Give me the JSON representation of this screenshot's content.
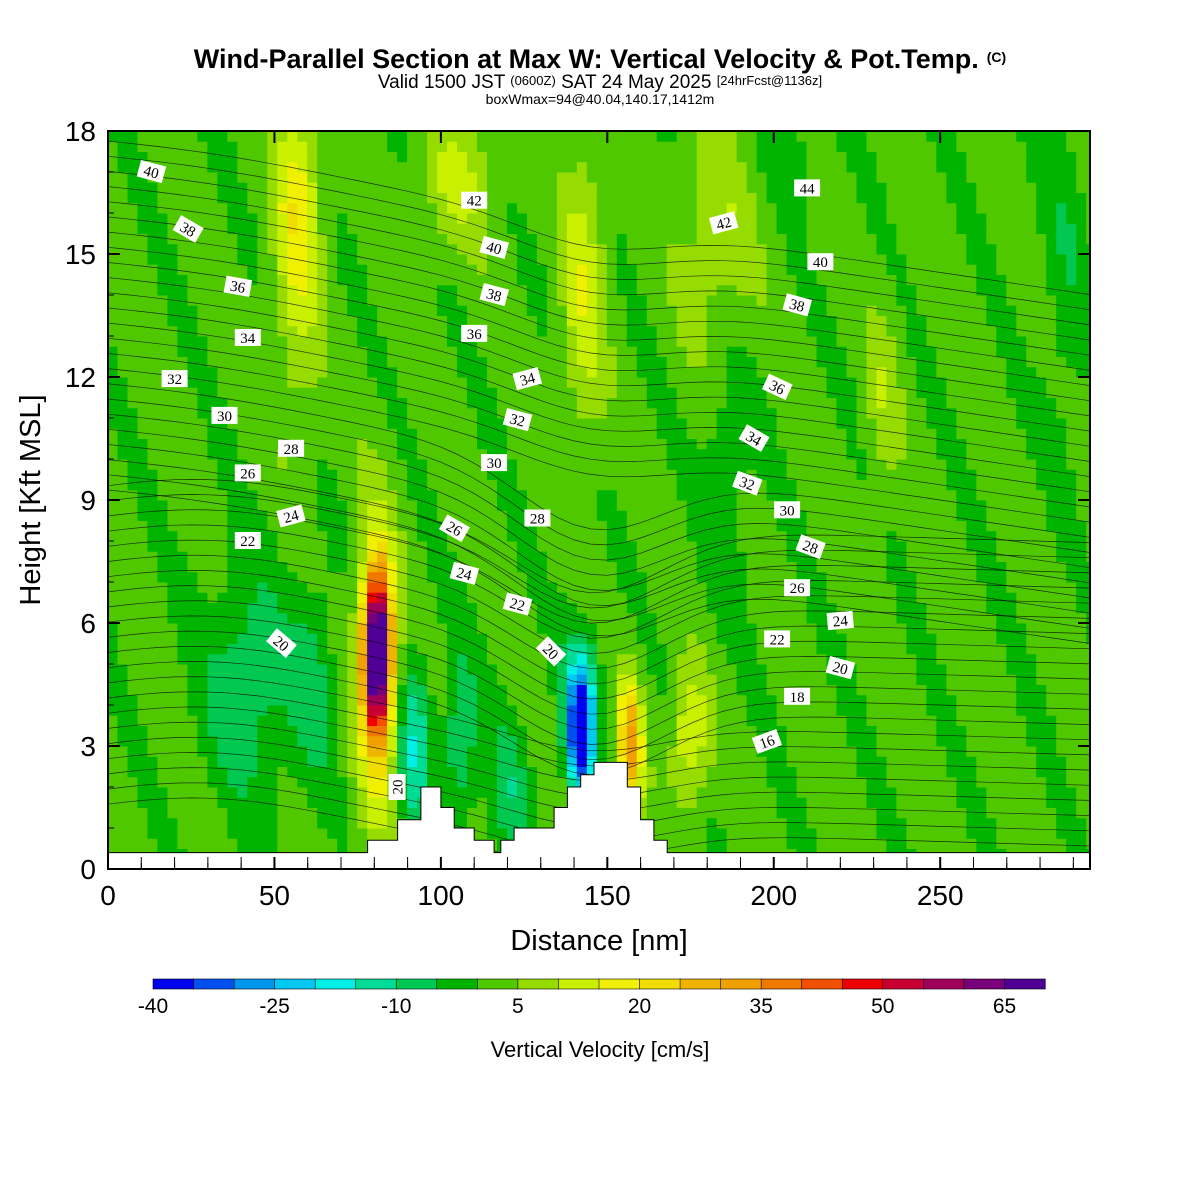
{
  "title": {
    "main": "Wind-Parallel Section at Max W: Vertical Velocity & Pot.Temp.",
    "copyright": "(C)",
    "valid_prefix": "Valid 1500 JST",
    "valid_utc": "(0600Z)",
    "valid_date": "SAT 24 May 2025",
    "forecast": "[24hrFcst@1136z]",
    "box": "boxWmax=94@40.04,140.17,1412m"
  },
  "chart_data": {
    "type": "heatmap",
    "xlabel": "Distance [nm]",
    "ylabel": "Height [Kft MSL]",
    "xlim": [
      0,
      295
    ],
    "ylim": [
      0,
      18
    ],
    "x_ticks": [
      0,
      50,
      100,
      150,
      200,
      250
    ],
    "y_ticks": [
      0,
      3,
      6,
      9,
      12,
      15,
      18
    ],
    "colorbar": {
      "title": "Vertical Velocity [cm/s]",
      "levels": [
        -40,
        -35,
        -30,
        -25,
        -20,
        -15,
        -10,
        -5,
        0,
        5,
        10,
        15,
        20,
        25,
        30,
        35,
        40,
        45,
        50,
        55,
        60,
        65,
        70
      ],
      "tick_labels": [
        "-40",
        "-25",
        "-10",
        "5",
        "20",
        "35",
        "50",
        "65"
      ],
      "colors": [
        "#0000f0",
        "#0050f0",
        "#0096f0",
        "#00c8f0",
        "#00f0e6",
        "#00dc96",
        "#00c850",
        "#00b400",
        "#50c800",
        "#96dc00",
        "#c8f000",
        "#f0f000",
        "#f0dc00",
        "#f0b400",
        "#f0a000",
        "#f07800",
        "#f05000",
        "#f00000",
        "#c80032",
        "#a0005a",
        "#780078",
        "#500096"
      ]
    },
    "terrain": [
      [
        0,
        0.4
      ],
      [
        78,
        0.4
      ],
      [
        78,
        0.7
      ],
      [
        87,
        0.7
      ],
      [
        87,
        1.2
      ],
      [
        94,
        1.2
      ],
      [
        94,
        2.0
      ],
      [
        100,
        2.0
      ],
      [
        100,
        1.5
      ],
      [
        104,
        1.5
      ],
      [
        104,
        1.0
      ],
      [
        110,
        1.0
      ],
      [
        110,
        0.7
      ],
      [
        116,
        0.7
      ],
      [
        116,
        0.4
      ],
      [
        118,
        0.4
      ],
      [
        118,
        0.7
      ],
      [
        122,
        0.7
      ],
      [
        122,
        1.0
      ],
      [
        134,
        1.0
      ],
      [
        134,
        1.5
      ],
      [
        138,
        1.5
      ],
      [
        138,
        2.0
      ],
      [
        142,
        2.0
      ],
      [
        142,
        2.3
      ],
      [
        146,
        2.3
      ],
      [
        146,
        2.6
      ],
      [
        156,
        2.6
      ],
      [
        156,
        2.0
      ],
      [
        160,
        2.0
      ],
      [
        160,
        1.2
      ],
      [
        164,
        1.2
      ],
      [
        164,
        0.7
      ],
      [
        168,
        0.7
      ],
      [
        168,
        0.4
      ],
      [
        295,
        0.4
      ]
    ],
    "theta_labels": [
      {
        "v": "40",
        "x": 13,
        "y": 17.0,
        "r": 15
      },
      {
        "v": "38",
        "x": 24,
        "y": 15.6,
        "r": 30
      },
      {
        "v": "36",
        "x": 39,
        "y": 14.2,
        "r": 10
      },
      {
        "v": "34",
        "x": 42,
        "y": 12.95,
        "r": 0
      },
      {
        "v": "32",
        "x": 20,
        "y": 11.95,
        "r": 0
      },
      {
        "v": "30",
        "x": 35,
        "y": 11.05,
        "r": 0
      },
      {
        "v": "28",
        "x": 55,
        "y": 10.25,
        "r": 0
      },
      {
        "v": "26",
        "x": 42,
        "y": 9.65,
        "r": 0
      },
      {
        "v": "24",
        "x": 55,
        "y": 8.6,
        "r": -15
      },
      {
        "v": "22",
        "x": 42,
        "y": 8.0,
        "r": 0
      },
      {
        "v": "20",
        "x": 52,
        "y": 5.5,
        "r": 40
      },
      {
        "v": "20",
        "x": 87,
        "y": 2.0,
        "r": -90
      },
      {
        "v": "42",
        "x": 110,
        "y": 16.3,
        "r": 0
      },
      {
        "v": "40",
        "x": 116,
        "y": 15.15,
        "r": 15
      },
      {
        "v": "38",
        "x": 116,
        "y": 14.0,
        "r": 15
      },
      {
        "v": "36",
        "x": 110,
        "y": 13.05,
        "r": 0
      },
      {
        "v": "34",
        "x": 126,
        "y": 11.95,
        "r": -15
      },
      {
        "v": "32",
        "x": 123,
        "y": 10.95,
        "r": 15
      },
      {
        "v": "30",
        "x": 116,
        "y": 9.9,
        "r": 0
      },
      {
        "v": "28",
        "x": 129,
        "y": 8.55,
        "r": 0
      },
      {
        "v": "26",
        "x": 104,
        "y": 8.3,
        "r": 30
      },
      {
        "v": "24",
        "x": 107,
        "y": 7.2,
        "r": 15
      },
      {
        "v": "22",
        "x": 123,
        "y": 6.45,
        "r": 15
      },
      {
        "v": "20",
        "x": 133,
        "y": 5.3,
        "r": 45
      },
      {
        "v": "44",
        "x": 210,
        "y": 16.6,
        "r": 0
      },
      {
        "v": "42",
        "x": 185,
        "y": 15.75,
        "r": -15
      },
      {
        "v": "40",
        "x": 214,
        "y": 14.8,
        "r": 0
      },
      {
        "v": "38",
        "x": 207,
        "y": 13.75,
        "r": 15
      },
      {
        "v": "36",
        "x": 201,
        "y": 11.75,
        "r": 25
      },
      {
        "v": "34",
        "x": 194,
        "y": 10.5,
        "r": 30
      },
      {
        "v": "32",
        "x": 192,
        "y": 9.4,
        "r": 20
      },
      {
        "v": "30",
        "x": 204,
        "y": 8.75,
        "r": 0
      },
      {
        "v": "28",
        "x": 211,
        "y": 7.85,
        "r": 20
      },
      {
        "v": "26",
        "x": 207,
        "y": 6.85,
        "r": 0
      },
      {
        "v": "24",
        "x": 220,
        "y": 6.05,
        "r": -5
      },
      {
        "v": "22",
        "x": 201,
        "y": 5.6,
        "r": 0
      },
      {
        "v": "20",
        "x": 220,
        "y": 4.9,
        "r": 15
      },
      {
        "v": "18",
        "x": 207,
        "y": 4.2,
        "r": 0
      },
      {
        "v": "16",
        "x": 198,
        "y": 3.1,
        "r": -20
      }
    ]
  }
}
